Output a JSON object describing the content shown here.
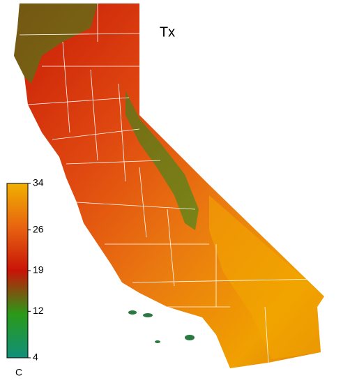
{
  "map": {
    "title": "Tx",
    "colorbar": {
      "lim": [
        4,
        34
      ],
      "ticks": [
        34,
        26,
        19,
        12,
        4
      ],
      "unit": "C"
    }
  }
}
